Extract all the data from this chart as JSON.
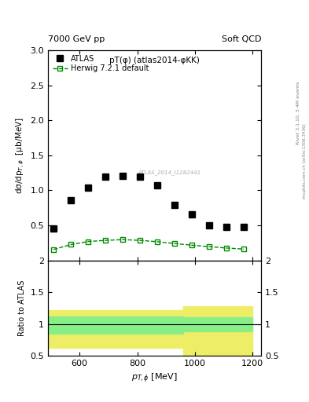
{
  "title_left": "7000 GeV pp",
  "title_right": "Soft QCD",
  "plot_title": "pT(φ) (atlas2014-φKK)",
  "right_label_top": "Rivet 3.1.10, 3.4M events",
  "right_label_bot": "mcplots.cern.ch [arXiv:1306.3436]",
  "ref_label": "ATLAS_2014_I1282441",
  "xlabel": "p_{T,φ} [MeV]",
  "ylabel": "dσ/dp_{T,φ}  [μb/MeV]",
  "ylabel_ratio": "Ratio to ATLAS",
  "xlim": [
    490,
    1230
  ],
  "ylim_main": [
    0.0,
    3.0
  ],
  "ylim_ratio": [
    0.5,
    2.0
  ],
  "yticks_main": [
    0.5,
    1.0,
    1.5,
    2.0,
    2.5,
    3.0
  ],
  "yticks_ratio": [
    0.5,
    1.0,
    1.5,
    2.0
  ],
  "xticks": [
    600,
    800,
    1000,
    1200
  ],
  "atlas_x": [
    510,
    570,
    630,
    690,
    750,
    810,
    870,
    930,
    990,
    1050,
    1110,
    1170
  ],
  "atlas_y": [
    0.46,
    0.86,
    1.04,
    1.19,
    1.21,
    1.2,
    1.07,
    0.79,
    0.66,
    0.5,
    0.48,
    0.48
  ],
  "herwig_x": [
    510,
    570,
    630,
    690,
    750,
    810,
    870,
    930,
    990,
    1050,
    1110,
    1170
  ],
  "herwig_y": [
    0.155,
    0.225,
    0.268,
    0.285,
    0.295,
    0.285,
    0.265,
    0.24,
    0.215,
    0.195,
    0.175,
    0.16
  ],
  "bin_edges": [
    480,
    540,
    600,
    660,
    720,
    780,
    840,
    900,
    960,
    1020,
    1080,
    1140,
    1200
  ],
  "ratio_yellow_lo": [
    0.62,
    0.62,
    0.62,
    0.62,
    0.62,
    0.62,
    0.62,
    0.62,
    0.5,
    0.5,
    0.5,
    0.5
  ],
  "ratio_yellow_hi": [
    1.22,
    1.22,
    1.22,
    1.22,
    1.22,
    1.22,
    1.22,
    1.22,
    1.28,
    1.28,
    1.28,
    1.28
  ],
  "ratio_green_lo": [
    0.85,
    0.85,
    0.85,
    0.85,
    0.85,
    0.85,
    0.85,
    0.85,
    0.88,
    0.88,
    0.88,
    0.88
  ],
  "ratio_green_hi": [
    1.12,
    1.12,
    1.12,
    1.12,
    1.12,
    1.12,
    1.12,
    1.12,
    1.1,
    1.1,
    1.1,
    1.1
  ],
  "atlas_color": "#000000",
  "herwig_color": "#008800",
  "green_band_color": "#88ee88",
  "yellow_band_color": "#eeee66",
  "background_color": "#ffffff",
  "legend_atlas": "ATLAS",
  "legend_herwig": "Herwig 7.2.1 default"
}
